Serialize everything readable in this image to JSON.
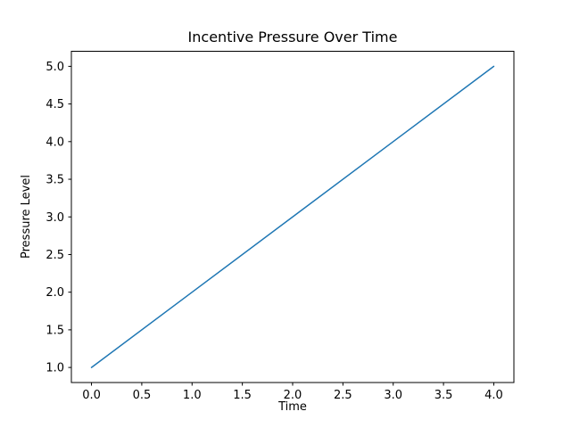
{
  "chart_data": {
    "type": "line",
    "title": "Incentive Pressure Over Time",
    "xlabel": "Time",
    "ylabel": "Pressure Level",
    "x": [
      0,
      1,
      2,
      3,
      4
    ],
    "series": [
      {
        "name": "Pressure Level",
        "values": [
          1,
          2,
          3,
          4,
          5
        ],
        "color": "#1f77b4",
        "linewidth": 1.5
      }
    ],
    "xlim": [
      -0.2,
      4.2
    ],
    "ylim": [
      0.8,
      5.2
    ],
    "xticks": [
      0.0,
      0.5,
      1.0,
      1.5,
      2.0,
      2.5,
      3.0,
      3.5,
      4.0
    ],
    "xtick_labels": [
      "0.0",
      "0.5",
      "1.0",
      "1.5",
      "2.0",
      "2.5",
      "3.0",
      "3.5",
      "4.0"
    ],
    "yticks": [
      1.0,
      1.5,
      2.0,
      2.5,
      3.0,
      3.5,
      4.0,
      4.5,
      5.0
    ],
    "ytick_labels": [
      "1.0",
      "1.5",
      "2.0",
      "2.5",
      "3.0",
      "3.5",
      "4.0",
      "4.5",
      "5.0"
    ],
    "grid": false,
    "legend": null
  },
  "colors": {
    "background": "#ffffff",
    "axis": "#000000",
    "line": "#1f77b4"
  }
}
